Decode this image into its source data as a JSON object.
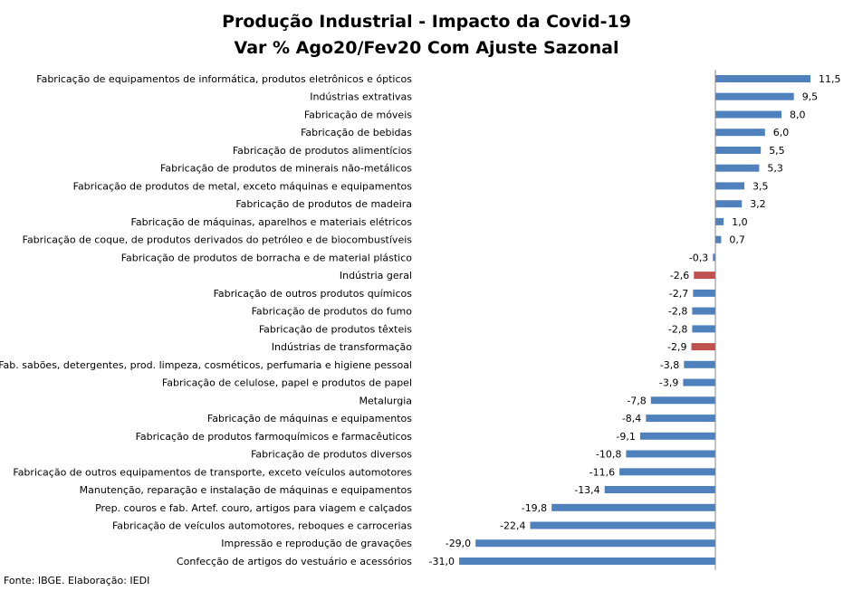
{
  "chart_data": {
    "type": "bar",
    "orientation": "horizontal",
    "title": "Produção Industrial - Impacto da Covid-19",
    "subtitle": "Var % Ago20/Fev20 Com Ajuste Sazonal",
    "categories": [
      "Fabricação de equipamentos de informática, produtos eletrônicos e ópticos",
      "Indústrias extrativas",
      "Fabricação de móveis",
      "Fabricação de bebidas",
      "Fabricação de produtos alimentícios",
      "Fabricação de produtos de minerais não-metálicos",
      "Fabricação de produtos de metal, exceto máquinas e equipamentos",
      "Fabricação de produtos de madeira",
      "Fabricação de máquinas, aparelhos e materiais elétricos",
      "Fabricação de coque, de produtos derivados do petróleo e de biocombustíveis",
      "Fabricação de produtos de borracha e de material plástico",
      "Indústria geral",
      "Fabricação de outros produtos químicos",
      "Fabricação de produtos do fumo",
      "Fabricação de produtos têxteis",
      "Indústrias de transformação",
      "Fab. sabões, detergentes, prod. limpeza, cosméticos, perfumaria e higiene pessoal",
      "Fabricação de celulose, papel e produtos de papel",
      "Metalurgia",
      "Fabricação de máquinas e equipamentos",
      "Fabricação de produtos farmoquímicos e farmacêuticos",
      "Fabricação de produtos diversos",
      "Fabricação de outros equipamentos de transporte, exceto veículos automotores",
      "Manutenção, reparação e instalação de máquinas e equipamentos",
      "Prep. couros e fab. Artef. couro, artigos para viagem e calçados",
      "Fabricação de veículos automotores, reboques e carrocerias",
      "Impressão e reprodução de gravações",
      "Confecção de artigos do vestuário e acessórios"
    ],
    "values": [
      11.5,
      9.5,
      8.0,
      6.0,
      5.5,
      5.3,
      3.5,
      3.2,
      1.0,
      0.7,
      -0.3,
      -2.6,
      -2.7,
      -2.8,
      -2.8,
      -2.9,
      -3.8,
      -3.9,
      -7.8,
      -8.4,
      -9.1,
      -10.8,
      -11.6,
      -13.4,
      -19.8,
      -22.4,
      -29.0,
      -31.0
    ],
    "value_labels": [
      "11,5",
      "9,5",
      "8,0",
      "6,0",
      "5,5",
      "5,3",
      "3,5",
      "3,2",
      "1,0",
      "0,7",
      "-0,3",
      "-2,6",
      "-2,7",
      "-2,8",
      "-2,8",
      "-2,9",
      "-3,8",
      "-3,9",
      "-7,8",
      "-8,4",
      "-9,1",
      "-10,8",
      "-11,6",
      "-13,4",
      "-19,8",
      "-22,4",
      "-29,0",
      "-31,0"
    ],
    "highlight": [
      "Indústria geral",
      "Indústrias de transformação"
    ],
    "colors": {
      "default": "#4F81BD",
      "highlight": "#C0504D",
      "axis": "#868686"
    },
    "xlim": [
      -31.0,
      11.5
    ],
    "grid": false,
    "legend": "none"
  },
  "footer": {
    "source": "Fonte: IBGE. Elaboração: IEDI"
  }
}
